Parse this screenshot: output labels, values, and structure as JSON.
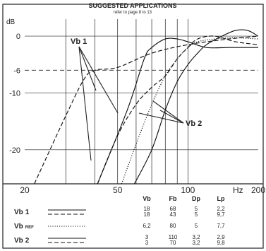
{
  "header": {
    "title": "SUGGESTED APPLICATIONS",
    "subtitle": "refer to page 8 to 13"
  },
  "chart_data": {
    "type": "line",
    "xscale": "log",
    "xlim": [
      20,
      200
    ],
    "ylim": [
      -26,
      3
    ],
    "yunit": "dB",
    "xunit": "Hz",
    "x_ticks": [
      {
        "value": 20,
        "label": "20"
      },
      {
        "value": 50,
        "label": "50"
      },
      {
        "value": 100,
        "label": "100"
      },
      {
        "value": 200,
        "label": "200"
      }
    ],
    "x_grid": [
      30,
      40,
      50,
      60,
      70,
      80,
      90,
      100
    ],
    "y_ticks": [
      {
        "value": 0,
        "label": "0"
      },
      {
        "value": -6,
        "label": "-6"
      },
      {
        "value": -10,
        "label": "-10"
      },
      {
        "value": -20,
        "label": "-20"
      }
    ],
    "y_grid": [
      0,
      -10,
      -20
    ],
    "reference_line": {
      "value": -6,
      "style": "dashed"
    },
    "annotations": [
      "Vb 1",
      "Vb 2"
    ],
    "series": [
      {
        "name": "Vb 1",
        "line": "solid",
        "x": [
          41,
          55,
          65,
          70,
          80,
          90,
          100,
          120,
          150,
          200
        ],
        "y": [
          -26,
          -13,
          -4,
          -2,
          -0.5,
          -0.5,
          -1,
          -2,
          -2,
          -2
        ]
      },
      {
        "name": "Vb 1",
        "line": "dashed",
        "x": [
          22,
          30,
          36,
          40,
          50,
          70,
          100,
          150,
          200
        ],
        "y": [
          -26,
          -14,
          -7.5,
          -6,
          -5.5,
          -3,
          -1.5,
          -0.5,
          0
        ]
      },
      {
        "name": "Vb REF",
        "line": "dotted",
        "x": [
          52,
          60,
          70,
          80,
          90,
          100,
          110,
          130,
          160,
          200
        ],
        "y": [
          -26,
          -19,
          -12,
          -7,
          -4,
          -2,
          -1,
          -0.5,
          -0.3,
          -0.5
        ]
      },
      {
        "name": "Vb 2",
        "line": "solid",
        "x": [
          59,
          70,
          80,
          90,
          100,
          110,
          120,
          140,
          160,
          180,
          200
        ],
        "y": [
          -26,
          -20,
          -13,
          -8,
          -5,
          -3,
          -1.5,
          0,
          1,
          1,
          0
        ]
      },
      {
        "name": "Vb 2",
        "line": "dashed",
        "x": [
          41,
          50,
          60,
          70,
          80,
          90,
          100,
          110,
          130,
          160,
          200
        ],
        "y": [
          -26,
          -17.5,
          -12,
          -9,
          -7,
          -4,
          -2,
          -0.5,
          0,
          -1,
          -1.5
        ]
      }
    ]
  },
  "table": {
    "columns": [
      "Vb",
      "Fb",
      "Dp",
      "Lp"
    ],
    "rows": [
      {
        "label_main": "Vb",
        "label_sub": "1",
        "line_top": "solid",
        "line_bottom": "dashed",
        "values": [
          [
            "18",
            "18"
          ],
          [
            "68",
            "43"
          ],
          [
            "5",
            "5"
          ],
          [
            "2,2",
            "9,7"
          ]
        ]
      },
      {
        "label_main": "Vb",
        "label_sub": "REF",
        "line_top": "dotted",
        "line_bottom": null,
        "values": [
          [
            "6,2"
          ],
          [
            "80"
          ],
          [
            "5"
          ],
          [
            "7,7"
          ]
        ]
      },
      {
        "label_main": "Vb",
        "label_sub": "2",
        "line_top": "solid",
        "line_bottom": "dashed",
        "values": [
          [
            "3",
            "3"
          ],
          [
            "110",
            "70"
          ],
          [
            "3,2",
            "3,2"
          ],
          [
            "2,9",
            "9,8"
          ]
        ]
      }
    ]
  }
}
